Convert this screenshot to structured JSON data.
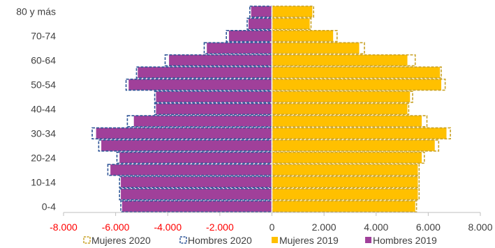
{
  "chart_data": {
    "type": "bar",
    "orientation": "horizontal",
    "categories": [
      "0-4",
      "5-9",
      "10-14",
      "15-19",
      "20-24",
      "25-29",
      "30-34",
      "35-39",
      "40-44",
      "45-49",
      "50-54",
      "55-59",
      "60-64",
      "65-69",
      "70-74",
      "75-79",
      "80 y más"
    ],
    "y_tick_labels": [
      "0-4",
      "",
      "10-14",
      "",
      "20-24",
      "",
      "30-34",
      "",
      "40-44",
      "",
      "50-54",
      "",
      "60-64",
      "",
      "70-74",
      "",
      "80 y más"
    ],
    "x_ticks": [
      -8000,
      -6000,
      -4000,
      -2000,
      0,
      2000,
      4000,
      6000,
      8000
    ],
    "x_tick_labels": [
      "-8.000",
      "-6.000",
      "-4.000",
      "-2.000",
      "0",
      "2.000",
      "4.000",
      "6.000",
      "8.000"
    ],
    "xlim": [
      -8000,
      8000
    ],
    "series": [
      {
        "name": "Mujeres 2020",
        "style": "outline-dashed",
        "color": "#c9a227",
        "values": [
          5550,
          5650,
          5650,
          5650,
          5850,
          6400,
          6850,
          5950,
          5250,
          5400,
          6650,
          6500,
          5500,
          3550,
          2500,
          1500,
          1600
        ]
      },
      {
        "name": "Hombres 2020",
        "style": "outline-dashed",
        "color": "#2f5597",
        "values": [
          -5800,
          -5850,
          -5850,
          -6300,
          -5950,
          -6650,
          -6900,
          -5550,
          -4500,
          -4500,
          -5600,
          -5200,
          -4100,
          -2600,
          -1750,
          -950,
          -850
        ]
      },
      {
        "name": "Mujeres 2019",
        "style": "filled",
        "color": "#ffc000",
        "values": [
          5500,
          5600,
          5600,
          5600,
          5750,
          6250,
          6700,
          5750,
          5200,
          5300,
          6500,
          6450,
          5200,
          3350,
          2350,
          1450,
          1550
        ]
      },
      {
        "name": "Hombres 2019",
        "style": "filled",
        "color": "#a0409a",
        "values": [
          -5750,
          -5800,
          -5800,
          -6200,
          -5850,
          -6550,
          -6750,
          -5300,
          -4450,
          -4450,
          -5500,
          -5150,
          -3950,
          -2500,
          -1650,
          -900,
          -800
        ]
      }
    ],
    "negative_tick_color": "#ff0000",
    "legend_position": "bottom"
  }
}
